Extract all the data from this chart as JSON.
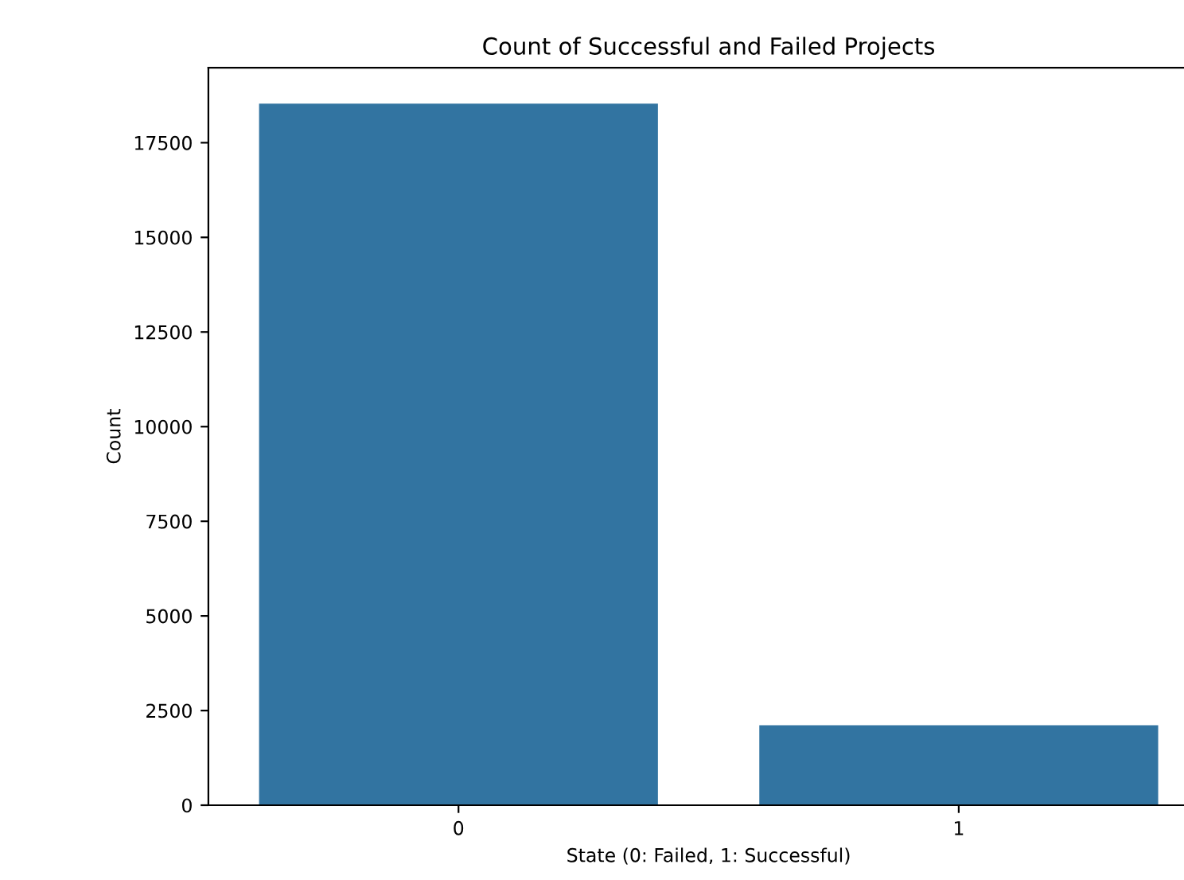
{
  "chart_data": {
    "type": "bar",
    "title": "Count of Successful and Failed Projects",
    "xlabel": "State (0: Failed, 1: Successful)",
    "ylabel": "Count",
    "categories": [
      "0",
      "1"
    ],
    "values": [
      18550,
      2130
    ],
    "color": "#3274a1",
    "ylim": [
      0,
      19480
    ],
    "yticks": [
      0,
      2500,
      5000,
      7500,
      10000,
      12500,
      15000,
      17500
    ],
    "grid": false,
    "legend": false
  }
}
